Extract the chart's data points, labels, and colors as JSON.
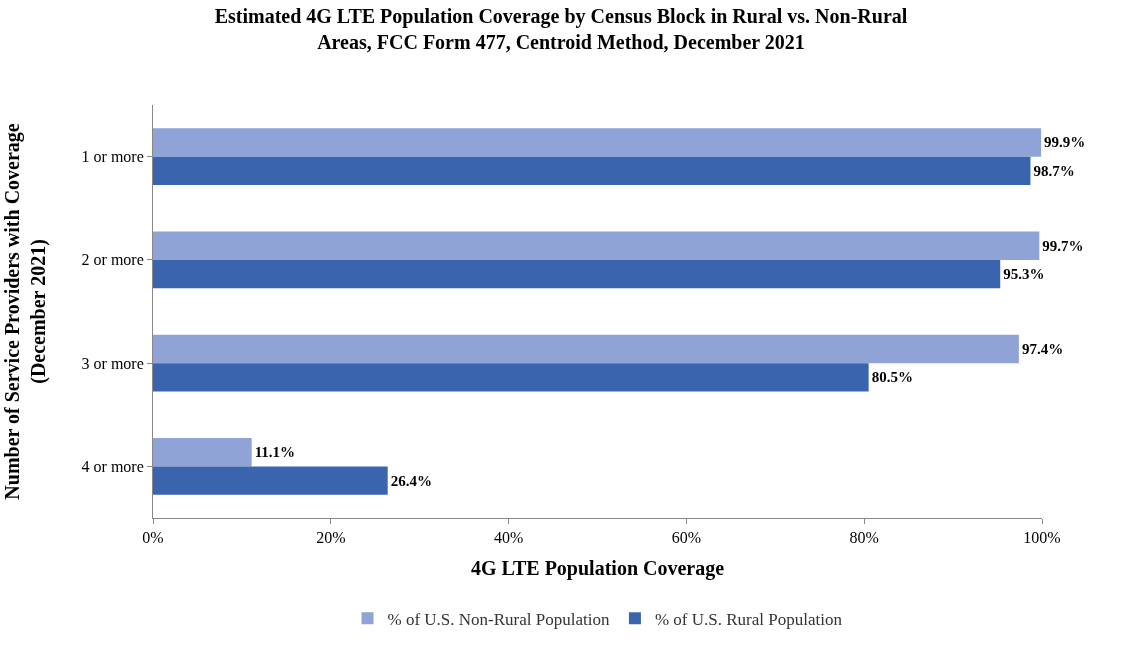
{
  "chart_data": {
    "type": "bar",
    "orientation": "horizontal",
    "title": "Estimated 4G LTE Population Coverage by Census Block in Rural vs. Non-Rural\nAreas, FCC Form 477, Centroid Method, December 2021",
    "xlabel": "4G LTE Population Coverage",
    "ylabel": "Number of Service Providers with Coverage\n(December 2021)",
    "categories": [
      "1 or more",
      "2 or more",
      "3 or more",
      "4 or more"
    ],
    "series": [
      {
        "name": "% of U.S. Non-Rural Population",
        "color": "#8fa3d6",
        "values": [
          99.9,
          99.7,
          97.4,
          11.1
        ],
        "value_labels": [
          "99.9%",
          "99.7%",
          "97.4%",
          "11.1%"
        ]
      },
      {
        "name": "% of U.S. Rural Population",
        "color": "#3b64ae",
        "values": [
          98.7,
          95.3,
          80.5,
          26.4
        ],
        "value_labels": [
          "98.7%",
          "95.3%",
          "80.5%",
          "26.4%"
        ]
      }
    ],
    "xlim": [
      0,
      100
    ],
    "xticks": [
      {
        "value": 0,
        "label": "0%"
      },
      {
        "value": 20,
        "label": "20%"
      },
      {
        "value": 40,
        "label": "40%"
      },
      {
        "value": 60,
        "label": "60%"
      },
      {
        "value": 80,
        "label": "80%"
      },
      {
        "value": 100,
        "label": "100%"
      }
    ],
    "legend": "bottom"
  }
}
